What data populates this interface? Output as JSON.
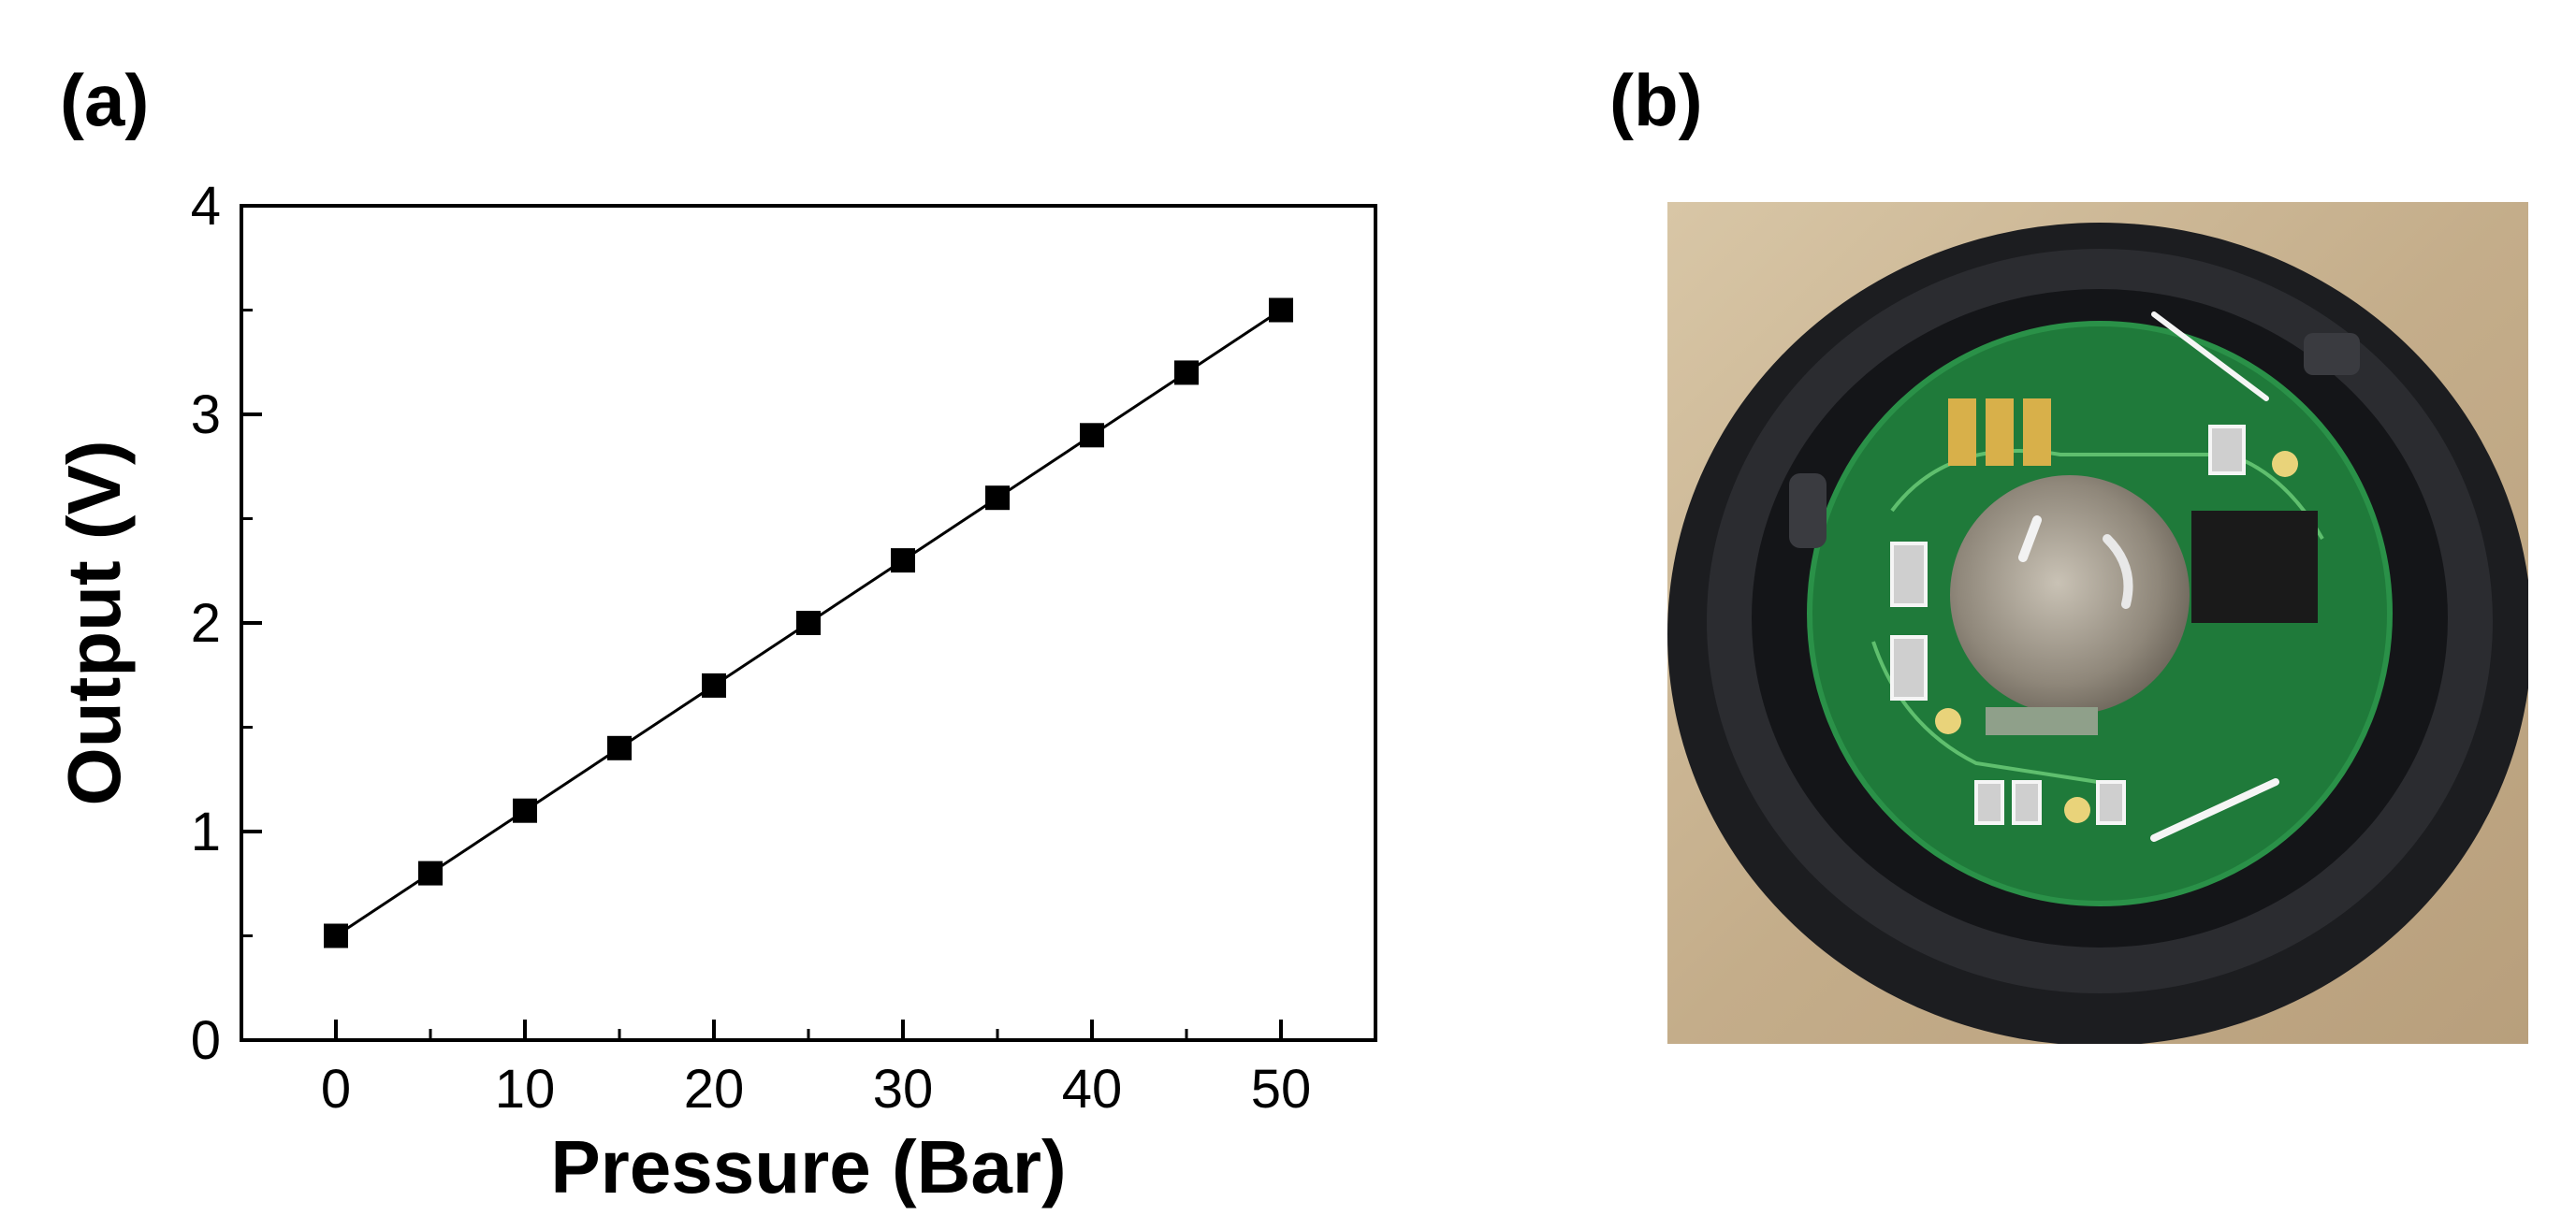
{
  "panels": {
    "a_label": "(a)",
    "b_label": "(b)"
  },
  "chart_data": {
    "type": "line",
    "title": "",
    "xlabel": "Pressure (Bar)",
    "ylabel": "Output (V)",
    "xlim": [
      -5,
      55
    ],
    "ylim": [
      0,
      4
    ],
    "xticks": [
      0,
      10,
      20,
      30,
      40,
      50
    ],
    "yticks": [
      0,
      1,
      2,
      3,
      4
    ],
    "grid": false,
    "legend": "none",
    "series": [
      {
        "marker": "square",
        "color": "#000000",
        "x": [
          0,
          5,
          10,
          15,
          20,
          25,
          30,
          35,
          40,
          45,
          50
        ],
        "y": [
          0.5,
          0.8,
          1.1,
          1.4,
          1.7,
          2.0,
          2.3,
          2.6,
          2.9,
          3.2,
          3.5
        ]
      }
    ]
  },
  "photo": {
    "description_icon": "pressure-sensor-circuit-board-photo"
  }
}
